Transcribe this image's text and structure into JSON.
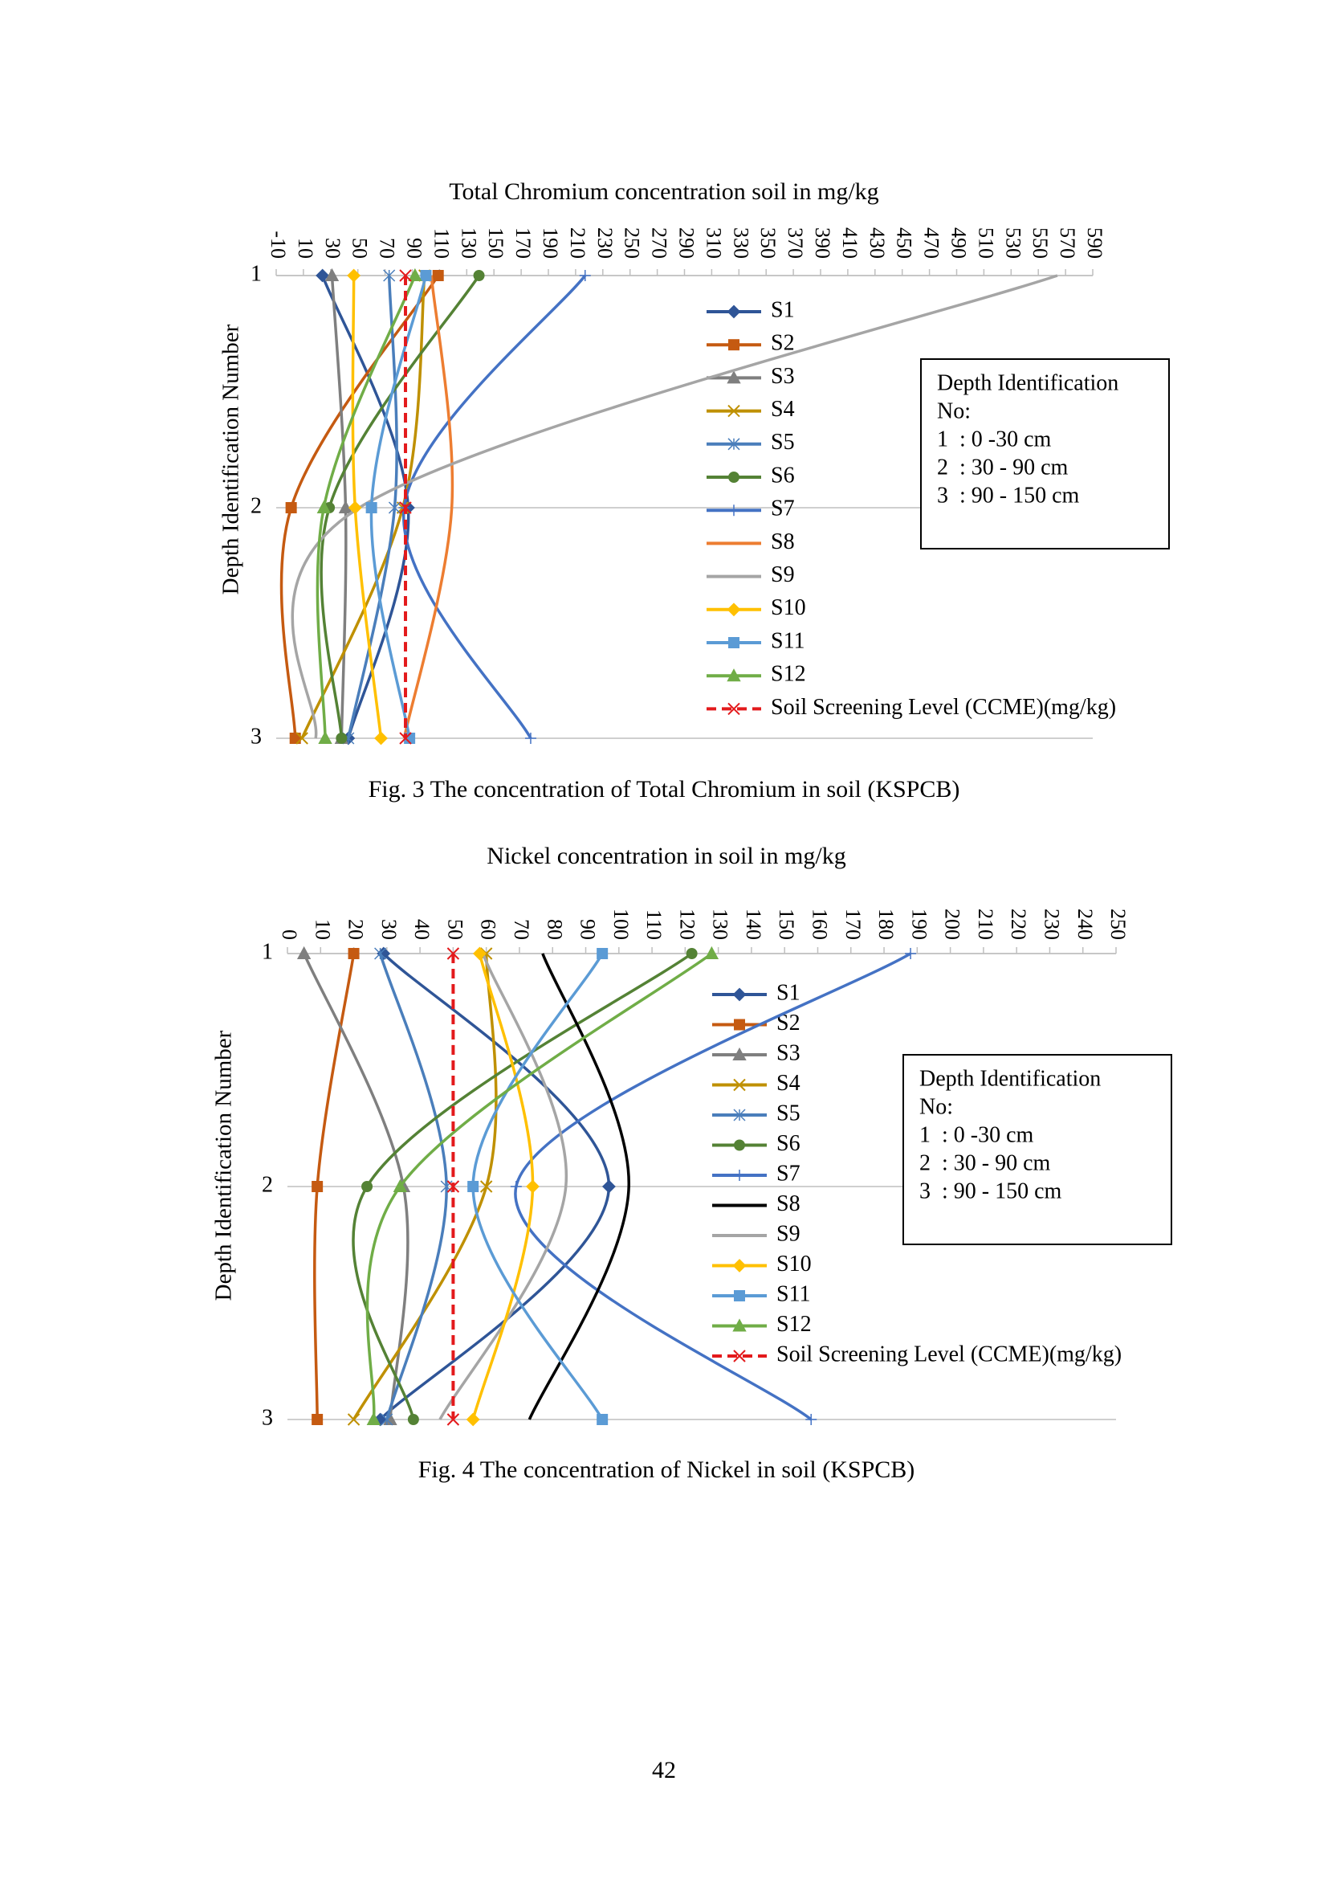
{
  "chart_data": [
    {
      "type": "line",
      "title": "Total Chromium concentration soil in mg/kg",
      "y_label": "Depth Identification Number",
      "categories": [
        "1",
        "2",
        "3"
      ],
      "xlim": [
        -10,
        590
      ],
      "xticks": [
        -10,
        10,
        30,
        50,
        70,
        90,
        110,
        130,
        150,
        170,
        190,
        210,
        230,
        250,
        270,
        290,
        310,
        330,
        350,
        370,
        390,
        410,
        430,
        450,
        470,
        490,
        510,
        530,
        550,
        570,
        590
      ],
      "grid": true,
      "series": [
        {
          "name": "S1",
          "color": "#2f5597",
          "marker": "diamond",
          "values": [
            24,
            87,
            43
          ]
        },
        {
          "name": "S2",
          "color": "#c55a11",
          "marker": "square",
          "values": [
            109,
            1,
            4
          ]
        },
        {
          "name": "S3",
          "color": "#7f7f7f",
          "marker": "triangle",
          "values": [
            31,
            41,
            38
          ]
        },
        {
          "name": "S4",
          "color": "#bf9000",
          "marker": "x",
          "values": [
            99,
            83,
            9
          ]
        },
        {
          "name": "S5",
          "color": "#4a7ebb",
          "marker": "star",
          "values": [
            73,
            77,
            43
          ]
        },
        {
          "name": "S6",
          "color": "#548235",
          "marker": "circle",
          "values": [
            139,
            29,
            38
          ]
        },
        {
          "name": "S7",
          "color": "#4472c4",
          "marker": "plus",
          "values": [
            217,
            84,
            177
          ]
        },
        {
          "name": "S8",
          "color": "#ed7d31",
          "marker": "none",
          "values": [
            104,
            119,
            84
          ]
        },
        {
          "name": "S9",
          "color": "#a5a5a5",
          "marker": "none",
          "values": [
            564,
            51,
            19
          ]
        },
        {
          "name": "S10",
          "color": "#ffc000",
          "marker": "diamond",
          "values": [
            47,
            48,
            67
          ]
        },
        {
          "name": "S11",
          "color": "#5b9bd5",
          "marker": "square",
          "values": [
            100,
            60,
            88
          ]
        },
        {
          "name": "S12",
          "color": "#70ad47",
          "marker": "triangle",
          "values": [
            92,
            25,
            26
          ]
        },
        {
          "name": "Soil Screening Level (CCME)(mg/kg)",
          "color": "#e31a1c",
          "marker": "x",
          "dashed": true,
          "values": [
            85,
            85,
            85
          ]
        }
      ],
      "annotation": [
        "Depth Identification",
        "No:",
        "1  : 0 -30 cm",
        "2  : 30 - 90 cm",
        "3  : 90 - 150 cm"
      ],
      "caption": "Fig. 3 The concentration of Total Chromium in soil (KSPCB)"
    },
    {
      "type": "line",
      "title": "Nickel concentration in soil in mg/kg",
      "y_label": "Depth Identification Number",
      "categories": [
        "1",
        "2",
        "3"
      ],
      "xlim": [
        0,
        250
      ],
      "xticks": [
        0,
        10,
        20,
        30,
        40,
        50,
        60,
        70,
        80,
        90,
        100,
        110,
        120,
        130,
        140,
        150,
        160,
        170,
        180,
        190,
        200,
        210,
        220,
        230,
        240,
        250
      ],
      "grid": true,
      "series": [
        {
          "name": "S1",
          "color": "#2f5597",
          "marker": "diamond",
          "values": [
            29,
            97,
            28
          ]
        },
        {
          "name": "S2",
          "color": "#c55a11",
          "marker": "square",
          "values": [
            20,
            9,
            9
          ]
        },
        {
          "name": "S3",
          "color": "#7f7f7f",
          "marker": "triangle",
          "values": [
            5,
            35,
            31
          ]
        },
        {
          "name": "S4",
          "color": "#bf9000",
          "marker": "x",
          "values": [
            60,
            60,
            20
          ]
        },
        {
          "name": "S5",
          "color": "#4a7ebb",
          "marker": "star",
          "values": [
            28,
            48,
            30
          ]
        },
        {
          "name": "S6",
          "color": "#548235",
          "marker": "circle",
          "values": [
            122,
            24,
            38
          ]
        },
        {
          "name": "S7",
          "color": "#4472c4",
          "marker": "plus",
          "values": [
            188,
            69,
            158
          ]
        },
        {
          "name": "S8",
          "color": "#000000",
          "marker": "none",
          "values": [
            77,
            103,
            73
          ]
        },
        {
          "name": "S9",
          "color": "#a5a5a5",
          "marker": "none",
          "values": [
            59,
            84,
            46
          ]
        },
        {
          "name": "S10",
          "color": "#ffc000",
          "marker": "diamond",
          "values": [
            58,
            74,
            56
          ]
        },
        {
          "name": "S11",
          "color": "#5b9bd5",
          "marker": "square",
          "values": [
            95,
            56,
            95
          ]
        },
        {
          "name": "S12",
          "color": "#70ad47",
          "marker": "triangle",
          "values": [
            128,
            34,
            26
          ]
        },
        {
          "name": "Soil Screening Level (CCME)(mg/kg)",
          "color": "#e31a1c",
          "marker": "x",
          "dashed": true,
          "values": [
            50,
            50,
            50
          ]
        }
      ],
      "annotation": [
        "Depth Identification",
        "No:",
        "1  : 0 -30 cm",
        "2  : 30 - 90 cm",
        "3  : 90 - 150 cm"
      ],
      "caption": "Fig. 4 The concentration of Nickel in soil (KSPCB)"
    }
  ],
  "page_number": "42"
}
